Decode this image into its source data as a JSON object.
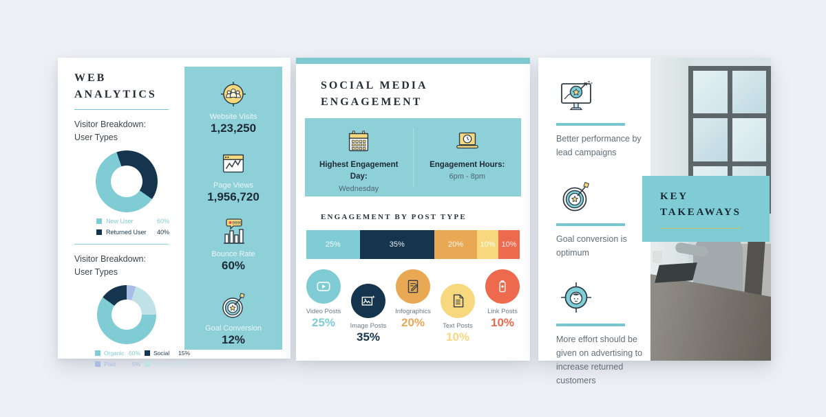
{
  "page": {
    "background": "#edf0f5"
  },
  "web_analytics": {
    "title_line1": "WEB",
    "title_line2": "ANALYTICS",
    "section1": {
      "heading_line1": "Visitor Breakdown:",
      "heading_line2": "User Types",
      "legend": [
        {
          "label": "New User",
          "value": "60%",
          "color": "#7fccd4"
        },
        {
          "label": "Returned User",
          "value": "40%",
          "color": "#14354d"
        }
      ]
    },
    "section2": {
      "heading_line1": "Visitor Breakdown:",
      "heading_line2": "User Types",
      "legend": [
        {
          "label": "Organic",
          "value": "60%",
          "color": "#7fccd4"
        },
        {
          "label": "Social",
          "value": "15%",
          "color": "#14354d"
        },
        {
          "label": "Paid",
          "value": "5%",
          "color": "#a9bce8"
        },
        {
          "label": "Referral",
          "value": "20%",
          "color": "#bfe2e6"
        }
      ]
    },
    "stats": [
      {
        "icon": "website-visits-icon",
        "label": "Website Visits",
        "value": "1,23,250"
      },
      {
        "icon": "page-views-icon",
        "label": "Page Views",
        "value": "1,956,720"
      },
      {
        "icon": "bounce-rate-icon",
        "label": "Bounce Rate",
        "value": "60%",
        "icon_badge": "9999"
      },
      {
        "icon": "goal-conversion-icon",
        "label": "Goal Conversion",
        "value": "12%"
      }
    ]
  },
  "social": {
    "title_line1": "SOCIAL MEDIA",
    "title_line2": "ENGAGEMENT",
    "highlights": [
      {
        "icon": "calendar-icon",
        "label_line1": "Highest Engagement",
        "label_line2": "Day:",
        "value": "Wednesday"
      },
      {
        "icon": "laptop-clock-icon",
        "label_line1": "Engagement Hours:",
        "label_line2": "",
        "value": "6pm - 8pm"
      }
    ],
    "post_type_heading": "ENGAGEMENT BY POST TYPE",
    "post_types": [
      {
        "icon": "video-post-icon",
        "label": "Video Posts",
        "value": "25%",
        "color": "#7fccd4"
      },
      {
        "icon": "image-post-icon",
        "label": "Image Posts",
        "value": "35%",
        "color": "#14354d"
      },
      {
        "icon": "infographic-post-icon",
        "label": "Infographics",
        "value": "20%",
        "color": "#e9a853"
      },
      {
        "icon": "text-post-icon",
        "label": "Text Posts",
        "value": "10%",
        "color": "#f8d87f"
      },
      {
        "icon": "link-post-icon",
        "label": "Link Posts",
        "value": "10%",
        "color": "#ee6a4f"
      }
    ]
  },
  "takeaways": {
    "box_title_line1": "KEY",
    "box_title_line2": "TAKEAWAYS",
    "items": [
      {
        "icon": "monitor-growth-icon",
        "text": "Better performance by lead campaigns"
      },
      {
        "icon": "target-dart-icon",
        "text": "Goal conversion is optimum"
      },
      {
        "icon": "customer-target-icon",
        "text": "More effort should be given on advertising to increase returned customers"
      }
    ]
  },
  "chart_data": [
    {
      "type": "pie",
      "title": "Visitor Breakdown: User Types",
      "labels": [
        "New User",
        "Returned User"
      ],
      "values": [
        60,
        40
      ],
      "colors": [
        "#7fccd4",
        "#14354d"
      ],
      "hole": 0.52,
      "rotation": 125,
      "legend_position": "bottom"
    },
    {
      "type": "pie",
      "title": "Visitor Breakdown: User Types",
      "labels": [
        "Organic",
        "Social",
        "Paid",
        "Referral"
      ],
      "values": [
        60,
        15,
        5,
        20
      ],
      "colors": [
        "#7fccd4",
        "#14354d",
        "#a9bce8",
        "#bfe2e6"
      ],
      "hole": 0.52,
      "rotation": 90,
      "legend_position": "bottom"
    },
    {
      "type": "bar",
      "stacked": true,
      "title": "Engagement by Post Type",
      "categories": [
        "Video Posts",
        "Image Posts",
        "Infographics",
        "Text Posts",
        "Link Posts"
      ],
      "values": [
        25,
        35,
        20,
        10,
        10
      ],
      "unit": "%",
      "labels_on_bar": [
        "25%",
        "35%",
        "20%",
        "10%",
        "10%"
      ],
      "colors": [
        "#7fccd4",
        "#14354d",
        "#e9a853",
        "#f8d87f",
        "#ee6a4f"
      ]
    }
  ]
}
